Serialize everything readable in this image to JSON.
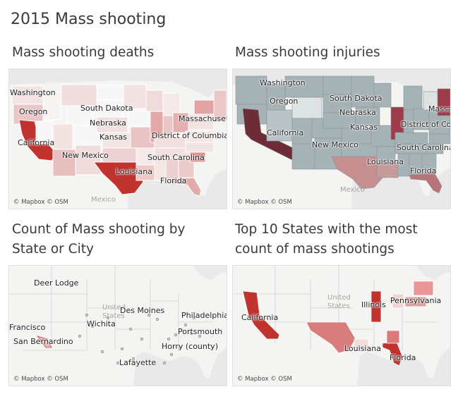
{
  "dashboard_title": "2015 Mass shooting",
  "panels": [
    {
      "title_lines": [
        "Mass shooting  deaths"
      ],
      "credit": "© Mapbox © OSM",
      "faint_labels": [
        "Mexico"
      ],
      "labels": [
        "Washington",
        "Oregon",
        "California",
        "South Dakota",
        "Nebraska",
        "Kansas",
        "New Mexico",
        "Louisiana",
        "Florida",
        "South Carolina",
        "District of Columbia",
        "Massachusetts"
      ]
    },
    {
      "title_lines": [
        "Mass shooting injuries"
      ],
      "credit": "© Mapbox © OSM",
      "faint_labels": [
        "Mexico"
      ],
      "labels": [
        "Washington",
        "Oregon",
        "California",
        "South Dakota",
        "Nebraska",
        "Kansas",
        "New Mexico",
        "Louisiana",
        "Florida",
        "South Carolina",
        "District of Columbia",
        "Massachusetts"
      ]
    },
    {
      "title_lines": [
        "Count of Mass shooting by",
        "State or City"
      ],
      "credit": "© Mapbox © OSM",
      "faint_labels": [
        "United",
        "States"
      ],
      "labels": [
        "Deer Lodge",
        "Des Moines",
        "Philadelphia",
        "Wichita",
        "Portsmouth",
        "Francisco",
        "San Bernardino",
        "Horry (county)",
        "Lafayette"
      ]
    },
    {
      "title_lines": [
        "Top 10 States with the most",
        "count of mass shootings"
      ],
      "credit": "© Mapbox © OSM",
      "faint_labels": [
        "United",
        "States"
      ],
      "labels": [
        "Illinois",
        "Pennsylvania",
        "California",
        "Louisiana",
        "Florida"
      ]
    }
  ],
  "colors": {
    "land": "#f4f4f3",
    "water": "#e9e9ea",
    "deaths_high": "#c0332e",
    "injuries_high": "#6e2c37",
    "injuries_low": "#a5b2b6",
    "no_data": "#e2e2e2"
  }
}
